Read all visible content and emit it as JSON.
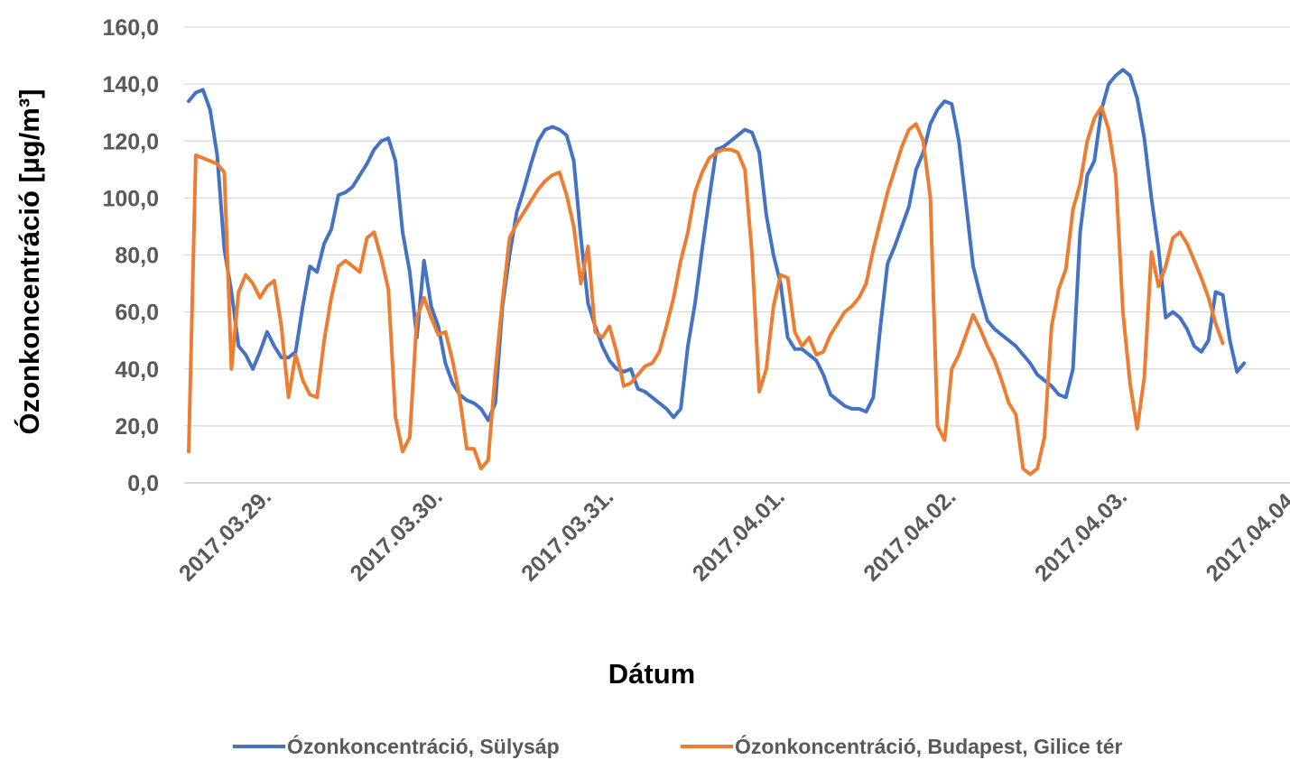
{
  "chart_data": {
    "type": "line",
    "title": "",
    "xlabel": "Dátum",
    "ylabel": "Ózonkoncentráció [µg/m³]",
    "ylim": [
      0,
      160
    ],
    "y_ticks": [
      0,
      20,
      40,
      60,
      80,
      100,
      120,
      140,
      160
    ],
    "y_tick_labels": [
      "0,0",
      "20,0",
      "40,0",
      "60,0",
      "80,0",
      "100,0",
      "120,0",
      "140,0",
      "160,0"
    ],
    "x_start": "2017.03.28. 13:00",
    "x_interval": "1 hour",
    "x_tick_labels": [
      "2017.03.29.",
      "2017.03.30.",
      "2017.03.31.",
      "2017.04.01.",
      "2017.04.02.",
      "2017.04.03.",
      "2017.04.04."
    ],
    "grid": true,
    "legend_position": "bottom",
    "series": [
      {
        "name": "Ózonkoncentráció, Sülysáp",
        "color": "#4472C4",
        "values": [
          134,
          137,
          138,
          131,
          115,
          82,
          67,
          48,
          45,
          40,
          46,
          53,
          48,
          44,
          44,
          46,
          62,
          76,
          74,
          84,
          89,
          101,
          102,
          104,
          108,
          112,
          117,
          120,
          121,
          113,
          88,
          74,
          51,
          78,
          62,
          55,
          42,
          35,
          31,
          29,
          28,
          26,
          22,
          28,
          62,
          80,
          95,
          103,
          112,
          120,
          124,
          125,
          124,
          122,
          113,
          86,
          63,
          55,
          48,
          43,
          40,
          39,
          40,
          33,
          32,
          30,
          28,
          26,
          23,
          26,
          48,
          63,
          82,
          100,
          117,
          118,
          120,
          122,
          124,
          123,
          116,
          94,
          80,
          70,
          51,
          47,
          47,
          45,
          43,
          38,
          31,
          29,
          27,
          26,
          26,
          25,
          30,
          55,
          77,
          83,
          90,
          97,
          110,
          116,
          126,
          131,
          134,
          133,
          120,
          98,
          76,
          66,
          57,
          54,
          52,
          50,
          48,
          45,
          42,
          38,
          36,
          34,
          31,
          30,
          40,
          88,
          108,
          113,
          131,
          140,
          143,
          145,
          143,
          135,
          121,
          100,
          82,
          58,
          60,
          58,
          54,
          48,
          46,
          50,
          67,
          66,
          50,
          39,
          42
        ]
      },
      {
        "name": "Ózonkoncentráció, Budapest, Gilice tér",
        "color": "#ED7D31",
        "values": [
          11,
          115,
          114,
          113,
          112,
          109,
          40,
          67,
          73,
          70,
          65,
          69,
          71,
          55,
          30,
          45,
          36,
          31,
          30,
          50,
          65,
          76,
          78,
          76,
          74,
          86,
          88,
          79,
          68,
          23,
          11,
          16,
          58,
          65,
          58,
          52,
          53,
          43,
          30,
          12,
          12,
          5,
          8,
          39,
          64,
          86,
          91,
          95,
          99,
          103,
          106,
          108,
          109,
          101,
          90,
          70,
          83,
          53,
          51,
          55,
          46,
          34,
          35,
          38,
          41,
          42,
          46,
          55,
          65,
          78,
          88,
          102,
          109,
          114,
          116,
          117,
          117,
          116,
          110,
          80,
          32,
          40,
          62,
          73,
          72,
          53,
          48,
          51,
          45,
          46,
          52,
          56,
          60,
          62,
          65,
          70,
          82,
          92,
          102,
          110,
          118,
          124,
          126,
          120,
          100,
          20,
          15,
          40,
          45,
          52,
          59,
          54,
          48,
          43,
          36,
          28,
          24,
          5,
          3,
          5,
          16,
          55,
          68,
          75,
          96,
          105,
          120,
          128,
          132,
          124,
          108,
          60,
          35,
          19,
          37,
          81,
          69,
          76,
          86,
          88,
          84,
          78,
          72,
          65,
          56,
          49
        ]
      }
    ]
  }
}
